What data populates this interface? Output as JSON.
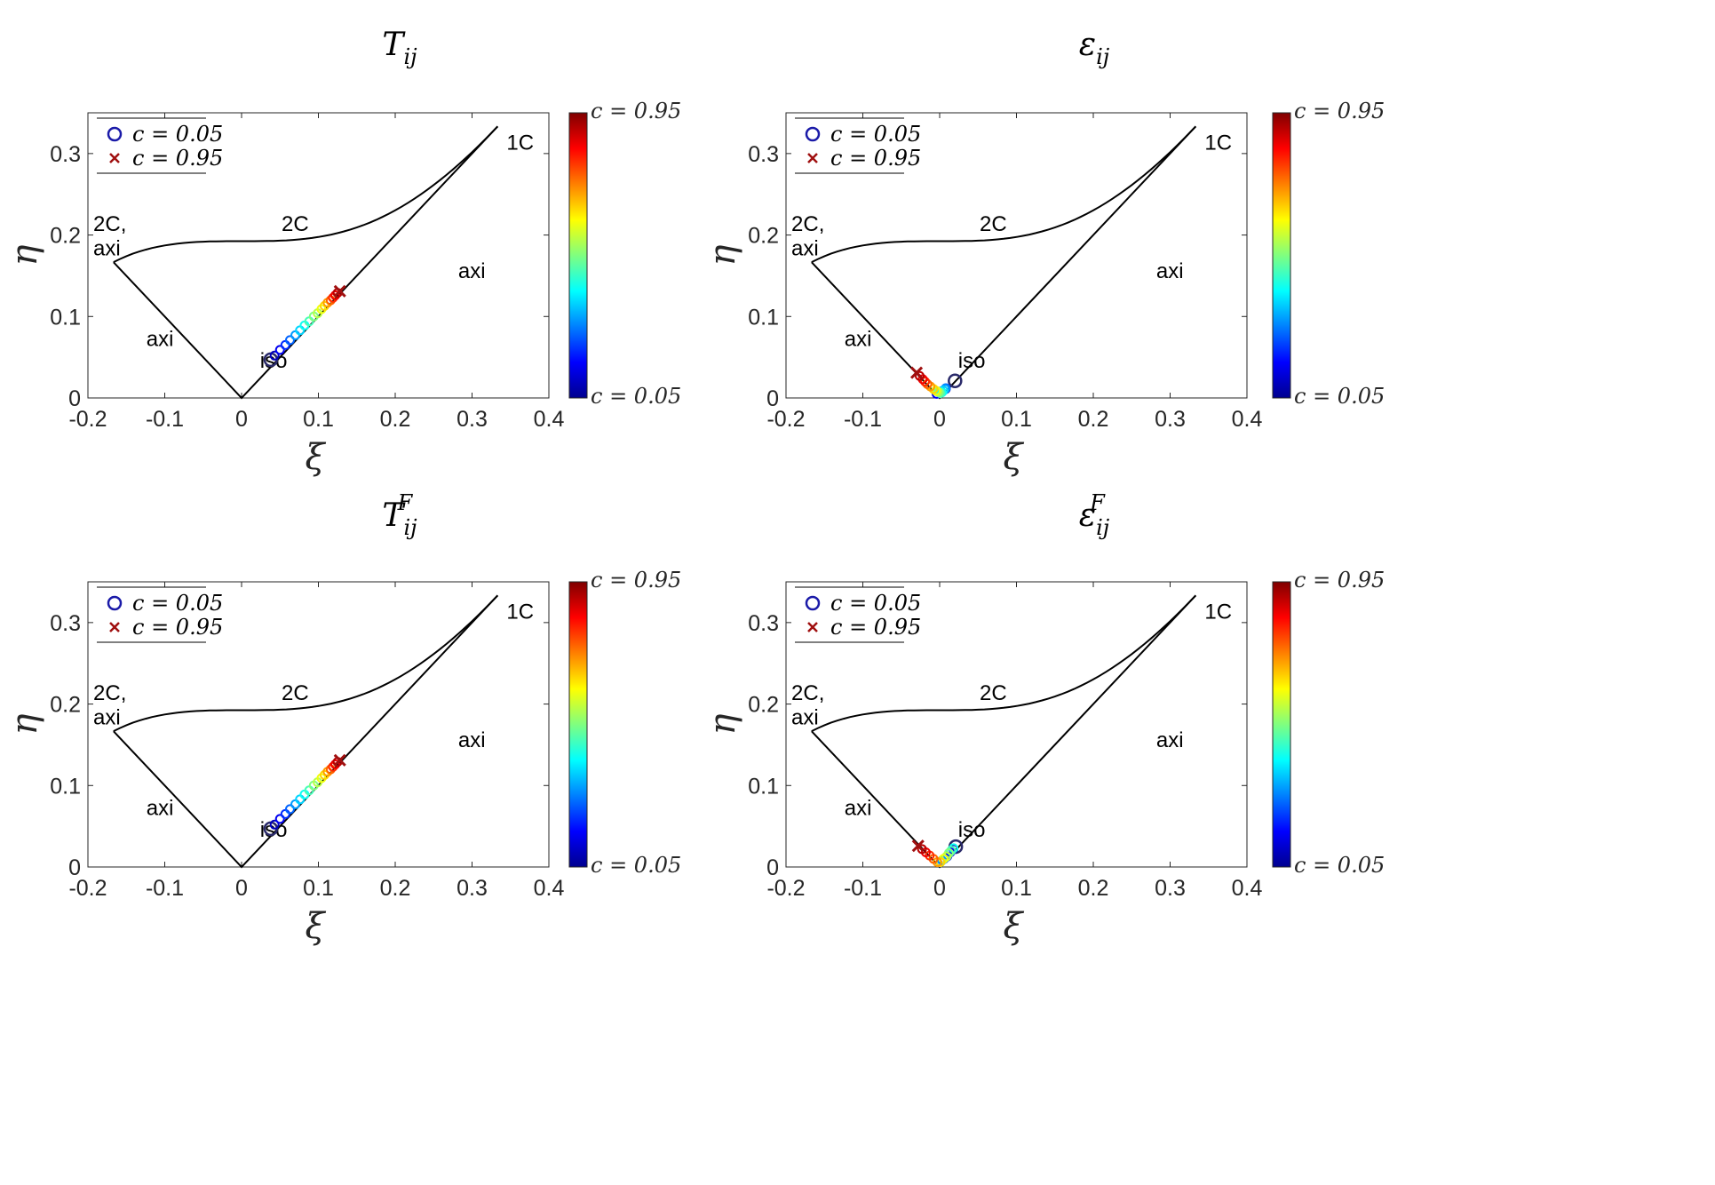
{
  "chart_data": [
    {
      "type": "scatter",
      "title": "T",
      "title_sub": "ij",
      "title_sup": "",
      "xlabel": "ξ",
      "ylabel": "η",
      "xlim": [
        -0.2,
        0.4
      ],
      "ylim": [
        0,
        0.35
      ],
      "xticks": [
        "-0.2",
        "-0.1",
        "0",
        "0.1",
        "0.2",
        "0.3",
        "0.4"
      ],
      "yticks": [
        "0",
        "0.1",
        "0.2",
        "0.3"
      ],
      "regions": [
        "2C,",
        "axi",
        "2C",
        "1C",
        "axi",
        "axi",
        "iso"
      ],
      "legend": [
        "c = 0.05",
        "c = 0.95"
      ],
      "colorbar": [
        "c = 0.95",
        "c = 0.05"
      ],
      "series": [
        {
          "name": "trajectory",
          "c": [
            0.05,
            0.1,
            0.15,
            0.2,
            0.25,
            0.3,
            0.35,
            0.4,
            0.45,
            0.5,
            0.55,
            0.6,
            0.65,
            0.7,
            0.75,
            0.8,
            0.85,
            0.9,
            0.95
          ],
          "x": [
            0.038,
            0.043,
            0.05,
            0.057,
            0.063,
            0.07,
            0.076,
            0.082,
            0.088,
            0.094,
            0.099,
            0.104,
            0.108,
            0.112,
            0.116,
            0.119,
            0.122,
            0.125,
            0.128
          ],
          "y": [
            0.047,
            0.052,
            0.059,
            0.065,
            0.071,
            0.077,
            0.083,
            0.089,
            0.094,
            0.1,
            0.104,
            0.109,
            0.113,
            0.117,
            0.12,
            0.123,
            0.126,
            0.129,
            0.131
          ]
        }
      ]
    },
    {
      "type": "scatter",
      "title": "ε",
      "title_sub": "ij",
      "title_sup": "",
      "xlabel": "ξ",
      "ylabel": "η",
      "xlim": [
        -0.2,
        0.4
      ],
      "ylim": [
        0,
        0.35
      ],
      "xticks": [
        "-0.2",
        "-0.1",
        "0",
        "0.1",
        "0.2",
        "0.3",
        "0.4"
      ],
      "yticks": [
        "0",
        "0.1",
        "0.2",
        "0.3"
      ],
      "regions": [
        "2C,",
        "axi",
        "2C",
        "1C",
        "axi",
        "axi",
        "iso"
      ],
      "legend": [
        "c = 0.05",
        "c = 0.95"
      ],
      "colorbar": [
        "c = 0.95",
        "c = 0.05"
      ],
      "series": [
        {
          "name": "trajectory",
          "c": [
            0.05,
            0.1,
            0.15,
            0.2,
            0.25,
            0.3,
            0.35,
            0.4,
            0.45,
            0.5,
            0.55,
            0.6,
            0.65,
            0.7,
            0.75,
            0.8,
            0.85,
            0.9,
            0.95
          ],
          "x": [
            0.02,
            0.008,
            -0.004,
            0.002,
            0.008,
            0.007,
            0.005,
            0.003,
            0.001,
            -0.001,
            -0.003,
            -0.005,
            -0.008,
            -0.012,
            -0.016,
            -0.019,
            -0.022,
            -0.026,
            -0.03
          ],
          "y": [
            0.021,
            0.011,
            0.005,
            0.008,
            0.012,
            0.011,
            0.009,
            0.007,
            0.006,
            0.007,
            0.008,
            0.009,
            0.011,
            0.014,
            0.017,
            0.02,
            0.023,
            0.027,
            0.031
          ]
        }
      ]
    },
    {
      "type": "scatter",
      "title": "T",
      "title_sub": "ij",
      "title_sup": "F",
      "xlabel": "ξ",
      "ylabel": "η",
      "xlim": [
        -0.2,
        0.4
      ],
      "ylim": [
        0,
        0.35
      ],
      "xticks": [
        "-0.2",
        "-0.1",
        "0",
        "0.1",
        "0.2",
        "0.3",
        "0.4"
      ],
      "yticks": [
        "0",
        "0.1",
        "0.2",
        "0.3"
      ],
      "regions": [
        "2C,",
        "axi",
        "2C",
        "1C",
        "axi",
        "axi",
        "iso"
      ],
      "legend": [
        "c = 0.05",
        "c = 0.95"
      ],
      "colorbar": [
        "c = 0.95",
        "c = 0.05"
      ],
      "series": [
        {
          "name": "trajectory",
          "c": [
            0.05,
            0.1,
            0.15,
            0.2,
            0.25,
            0.3,
            0.35,
            0.4,
            0.45,
            0.5,
            0.55,
            0.6,
            0.65,
            0.7,
            0.75,
            0.8,
            0.85,
            0.9,
            0.95
          ],
          "x": [
            0.038,
            0.043,
            0.05,
            0.057,
            0.063,
            0.07,
            0.076,
            0.082,
            0.088,
            0.094,
            0.099,
            0.104,
            0.108,
            0.112,
            0.116,
            0.119,
            0.122,
            0.125,
            0.128
          ],
          "y": [
            0.047,
            0.052,
            0.059,
            0.065,
            0.071,
            0.077,
            0.083,
            0.089,
            0.094,
            0.1,
            0.104,
            0.109,
            0.113,
            0.117,
            0.12,
            0.123,
            0.126,
            0.129,
            0.131
          ]
        }
      ]
    },
    {
      "type": "scatter",
      "title": "ε",
      "title_sub": "ij",
      "title_sup": "F",
      "xlabel": "ξ",
      "ylabel": "η",
      "xlim": [
        -0.2,
        0.4
      ],
      "ylim": [
        0,
        0.35
      ],
      "xticks": [
        "-0.2",
        "-0.1",
        "0",
        "0.1",
        "0.2",
        "0.3",
        "0.4"
      ],
      "yticks": [
        "0",
        "0.1",
        "0.2",
        "0.3"
      ],
      "regions": [
        "2C,",
        "axi",
        "2C",
        "1C",
        "axi",
        "axi",
        "iso"
      ],
      "legend": [
        "c = 0.05",
        "c = 0.95"
      ],
      "colorbar": [
        "c = 0.95",
        "c = 0.05"
      ],
      "series": [
        {
          "name": "trajectory",
          "c": [
            0.05,
            0.1,
            0.15,
            0.2,
            0.25,
            0.3,
            0.35,
            0.4,
            0.45,
            0.5,
            0.55,
            0.6,
            0.65,
            0.7,
            0.75,
            0.8,
            0.85,
            0.9,
            0.95
          ],
          "x": [
            0.021,
            0.018,
            0.014,
            0.01,
            0.006,
            0.003,
            0.001,
            0.018,
            0.015,
            0.012,
            0.009,
            0.005,
            0.001,
            -0.003,
            -0.008,
            -0.013,
            -0.018,
            -0.023,
            -0.028
          ],
          "y": [
            0.025,
            0.022,
            0.018,
            0.013,
            0.01,
            0.008,
            0.006,
            0.023,
            0.02,
            0.017,
            0.013,
            0.01,
            0.006,
            0.006,
            0.01,
            0.014,
            0.018,
            0.022,
            0.026
          ]
        }
      ]
    }
  ],
  "colors": {
    "lumley": "#000000",
    "axis": "#262626",
    "marker_start": "#1a1aa8",
    "marker_end": "#a01010"
  }
}
